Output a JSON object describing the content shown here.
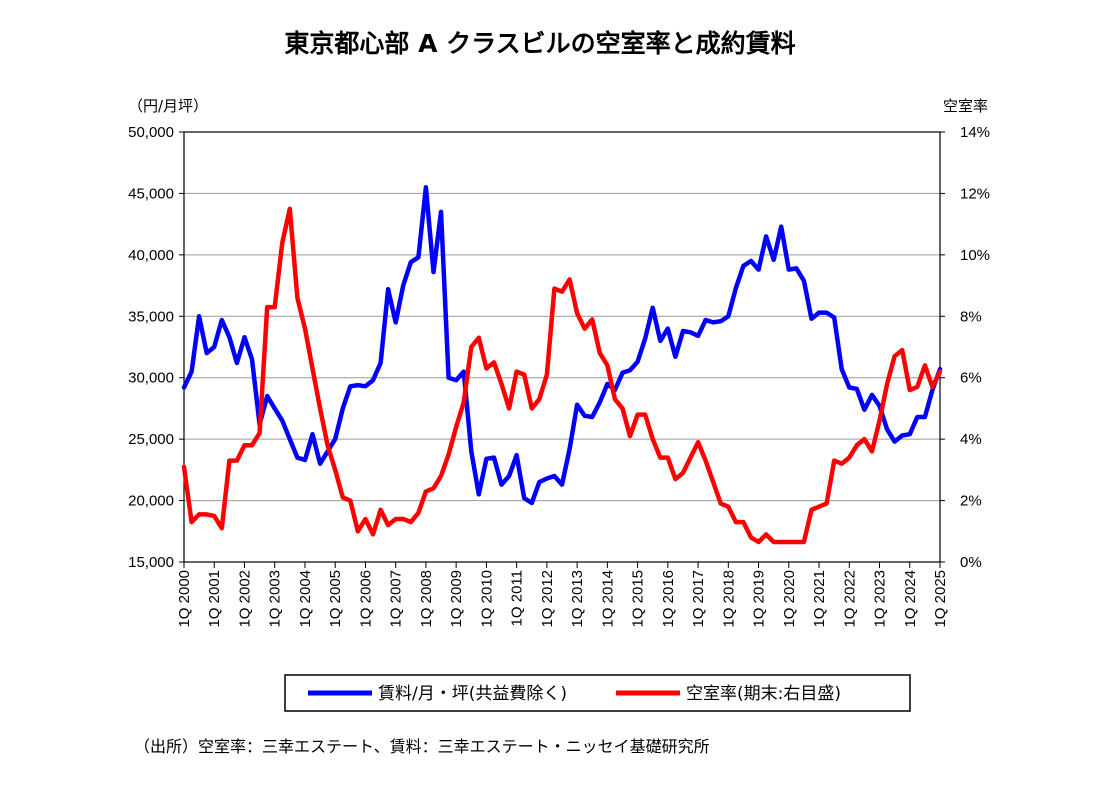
{
  "chart_data": {
    "type": "line",
    "title": "東京都心部 A クラスビルの空室率と成約賃料",
    "left_axis": {
      "unit_label": "（円/月坪）",
      "range": [
        15000,
        50000
      ],
      "ticks": [
        "50,000",
        "45,000",
        "40,000",
        "35,000",
        "30,000",
        "25,000",
        "20,000",
        "15,000"
      ]
    },
    "right_axis": {
      "unit_label": "空室率",
      "range": [
        0,
        14
      ],
      "ticks": [
        "14%",
        "12%",
        "10%",
        "8%",
        "6%",
        "4%",
        "2%",
        "0%"
      ]
    },
    "x_axis": {
      "range": [
        2000,
        2025
      ],
      "ticks": [
        "1Q 2000",
        "1Q 2001",
        "1Q 2002",
        "1Q 2003",
        "1Q 2004",
        "1Q 2005",
        "1Q 2006",
        "1Q 2007",
        "1Q 2008",
        "1Q 2009",
        "1Q 2010",
        "1Q 2011",
        "1Q 2012",
        "1Q 2013",
        "1Q 2014",
        "1Q 2015",
        "1Q 2016",
        "1Q 2017",
        "1Q 2018",
        "1Q 2019",
        "1Q 2020",
        "1Q 2021",
        "1Q 2022",
        "1Q 2023",
        "1Q 2024",
        "1Q 2025"
      ]
    },
    "grid": true,
    "legend_position": "bottom",
    "series": [
      {
        "name": "賃料/月・坪(共益費除く)",
        "axis": "left",
        "color": "#0000ff",
        "points": [
          [
            2000.0,
            29200
          ],
          [
            2000.25,
            30500
          ],
          [
            2000.5,
            35000
          ],
          [
            2000.75,
            32000
          ],
          [
            2001.0,
            32500
          ],
          [
            2001.25,
            34700
          ],
          [
            2001.5,
            33300
          ],
          [
            2001.75,
            31200
          ],
          [
            2002.0,
            33300
          ],
          [
            2002.25,
            31500
          ],
          [
            2002.5,
            26200
          ],
          [
            2002.75,
            28500
          ],
          [
            2003.0,
            27500
          ],
          [
            2003.25,
            26500
          ],
          [
            2003.5,
            25000
          ],
          [
            2003.75,
            23500
          ],
          [
            2004.0,
            23300
          ],
          [
            2004.25,
            25400
          ],
          [
            2004.5,
            23000
          ],
          [
            2004.75,
            24000
          ],
          [
            2005.0,
            25000
          ],
          [
            2005.25,
            27500
          ],
          [
            2005.5,
            29300
          ],
          [
            2005.75,
            29400
          ],
          [
            2006.0,
            29300
          ],
          [
            2006.25,
            29800
          ],
          [
            2006.5,
            31200
          ],
          [
            2006.75,
            37200
          ],
          [
            2007.0,
            34500
          ],
          [
            2007.25,
            37500
          ],
          [
            2007.5,
            39400
          ],
          [
            2007.75,
            39800
          ],
          [
            2008.0,
            45500
          ],
          [
            2008.25,
            38600
          ],
          [
            2008.5,
            43500
          ],
          [
            2008.75,
            30000
          ],
          [
            2009.0,
            29800
          ],
          [
            2009.25,
            30500
          ],
          [
            2009.5,
            24000
          ],
          [
            2009.75,
            20500
          ],
          [
            2010.0,
            23400
          ],
          [
            2010.25,
            23500
          ],
          [
            2010.5,
            21300
          ],
          [
            2010.75,
            22000
          ],
          [
            2011.0,
            23700
          ],
          [
            2011.25,
            20200
          ],
          [
            2011.5,
            19800
          ],
          [
            2011.75,
            21500
          ],
          [
            2012.0,
            21800
          ],
          [
            2012.25,
            22000
          ],
          [
            2012.5,
            21300
          ],
          [
            2012.75,
            24200
          ],
          [
            2013.0,
            27800
          ],
          [
            2013.25,
            26900
          ],
          [
            2013.5,
            26800
          ],
          [
            2013.75,
            28000
          ],
          [
            2014.0,
            29500
          ],
          [
            2014.25,
            29000
          ],
          [
            2014.5,
            30400
          ],
          [
            2014.75,
            30600
          ],
          [
            2015.0,
            31300
          ],
          [
            2015.25,
            33200
          ],
          [
            2015.5,
            35700
          ],
          [
            2015.75,
            33000
          ],
          [
            2016.0,
            34000
          ],
          [
            2016.25,
            31700
          ],
          [
            2016.5,
            33800
          ],
          [
            2016.75,
            33700
          ],
          [
            2017.0,
            33400
          ],
          [
            2017.25,
            34700
          ],
          [
            2017.5,
            34500
          ],
          [
            2017.75,
            34600
          ],
          [
            2018.0,
            35000
          ],
          [
            2018.25,
            37300
          ],
          [
            2018.5,
            39100
          ],
          [
            2018.75,
            39500
          ],
          [
            2019.0,
            38800
          ],
          [
            2019.25,
            41500
          ],
          [
            2019.5,
            39600
          ],
          [
            2019.75,
            42300
          ],
          [
            2020.0,
            38800
          ],
          [
            2020.25,
            38900
          ],
          [
            2020.5,
            37900
          ],
          [
            2020.75,
            34800
          ],
          [
            2021.0,
            35300
          ],
          [
            2021.25,
            35300
          ],
          [
            2021.5,
            34900
          ],
          [
            2021.75,
            30700
          ],
          [
            2022.0,
            29200
          ],
          [
            2022.25,
            29100
          ],
          [
            2022.5,
            27400
          ],
          [
            2022.75,
            28600
          ],
          [
            2023.0,
            27700
          ],
          [
            2023.25,
            25800
          ],
          [
            2023.5,
            24800
          ],
          [
            2023.75,
            25300
          ],
          [
            2024.0,
            25400
          ],
          [
            2024.25,
            26800
          ],
          [
            2024.5,
            26800
          ],
          [
            2024.75,
            29000
          ],
          [
            2025.0,
            30700
          ]
        ]
      },
      {
        "name": "空室率(期末:右目盛)",
        "axis": "right",
        "color": "#ff0000",
        "points": [
          [
            2000.0,
            3.1
          ],
          [
            2000.25,
            1.3
          ],
          [
            2000.5,
            1.55
          ],
          [
            2000.75,
            1.55
          ],
          [
            2001.0,
            1.5
          ],
          [
            2001.25,
            1.1
          ],
          [
            2001.5,
            3.3
          ],
          [
            2001.75,
            3.3
          ],
          [
            2002.0,
            3.8
          ],
          [
            2002.25,
            3.8
          ],
          [
            2002.5,
            4.2
          ],
          [
            2002.75,
            8.3
          ],
          [
            2003.0,
            8.3
          ],
          [
            2003.25,
            10.4
          ],
          [
            2003.5,
            11.5
          ],
          [
            2003.75,
            8.6
          ],
          [
            2004.0,
            7.6
          ],
          [
            2004.25,
            6.3
          ],
          [
            2004.5,
            5.0
          ],
          [
            2004.75,
            3.8
          ],
          [
            2005.0,
            3.0
          ],
          [
            2005.25,
            2.1
          ],
          [
            2005.5,
            2.0
          ],
          [
            2005.75,
            1.0
          ],
          [
            2006.0,
            1.4
          ],
          [
            2006.25,
            0.9
          ],
          [
            2006.5,
            1.7
          ],
          [
            2006.75,
            1.2
          ],
          [
            2007.0,
            1.4
          ],
          [
            2007.25,
            1.4
          ],
          [
            2007.5,
            1.3
          ],
          [
            2007.75,
            1.6
          ],
          [
            2008.0,
            2.3
          ],
          [
            2008.25,
            2.4
          ],
          [
            2008.5,
            2.8
          ],
          [
            2008.75,
            3.5
          ],
          [
            2009.0,
            4.4
          ],
          [
            2009.25,
            5.2
          ],
          [
            2009.5,
            7.0
          ],
          [
            2009.75,
            7.3
          ],
          [
            2010.0,
            6.3
          ],
          [
            2010.25,
            6.5
          ],
          [
            2010.5,
            5.8
          ],
          [
            2010.75,
            5.0
          ],
          [
            2011.0,
            6.2
          ],
          [
            2011.25,
            6.1
          ],
          [
            2011.5,
            5.0
          ],
          [
            2011.75,
            5.3
          ],
          [
            2012.0,
            6.1
          ],
          [
            2012.25,
            8.9
          ],
          [
            2012.5,
            8.8
          ],
          [
            2012.75,
            9.2
          ],
          [
            2013.0,
            8.1
          ],
          [
            2013.25,
            7.6
          ],
          [
            2013.5,
            7.9
          ],
          [
            2013.75,
            6.8
          ],
          [
            2014.0,
            6.4
          ],
          [
            2014.25,
            5.3
          ],
          [
            2014.5,
            5.0
          ],
          [
            2014.75,
            4.1
          ],
          [
            2015.0,
            4.8
          ],
          [
            2015.25,
            4.8
          ],
          [
            2015.5,
            4.0
          ],
          [
            2015.75,
            3.4
          ],
          [
            2016.0,
            3.4
          ],
          [
            2016.25,
            2.7
          ],
          [
            2016.5,
            2.9
          ],
          [
            2016.75,
            3.4
          ],
          [
            2017.0,
            3.9
          ],
          [
            2017.25,
            3.3
          ],
          [
            2017.5,
            2.6
          ],
          [
            2017.75,
            1.9
          ],
          [
            2018.0,
            1.8
          ],
          [
            2018.25,
            1.3
          ],
          [
            2018.5,
            1.3
          ],
          [
            2018.75,
            0.8
          ],
          [
            2019.0,
            0.65
          ],
          [
            2019.25,
            0.9
          ],
          [
            2019.5,
            0.65
          ],
          [
            2019.75,
            0.65
          ],
          [
            2020.0,
            0.65
          ],
          [
            2020.25,
            0.65
          ],
          [
            2020.5,
            0.65
          ],
          [
            2020.75,
            1.7
          ],
          [
            2021.0,
            1.8
          ],
          [
            2021.25,
            1.9
          ],
          [
            2021.5,
            3.3
          ],
          [
            2021.75,
            3.2
          ],
          [
            2022.0,
            3.4
          ],
          [
            2022.25,
            3.8
          ],
          [
            2022.5,
            4.0
          ],
          [
            2022.75,
            3.6
          ],
          [
            2023.0,
            4.6
          ],
          [
            2023.25,
            5.8
          ],
          [
            2023.5,
            6.7
          ],
          [
            2023.75,
            6.9
          ],
          [
            2024.0,
            5.6
          ],
          [
            2024.25,
            5.7
          ],
          [
            2024.5,
            6.4
          ],
          [
            2024.75,
            5.7
          ],
          [
            2025.0,
            6.2
          ]
        ]
      }
    ]
  },
  "source_note": "（出所）空室率：三幸エステート、賃料：三幸エステート・ニッセイ基礎研究所"
}
